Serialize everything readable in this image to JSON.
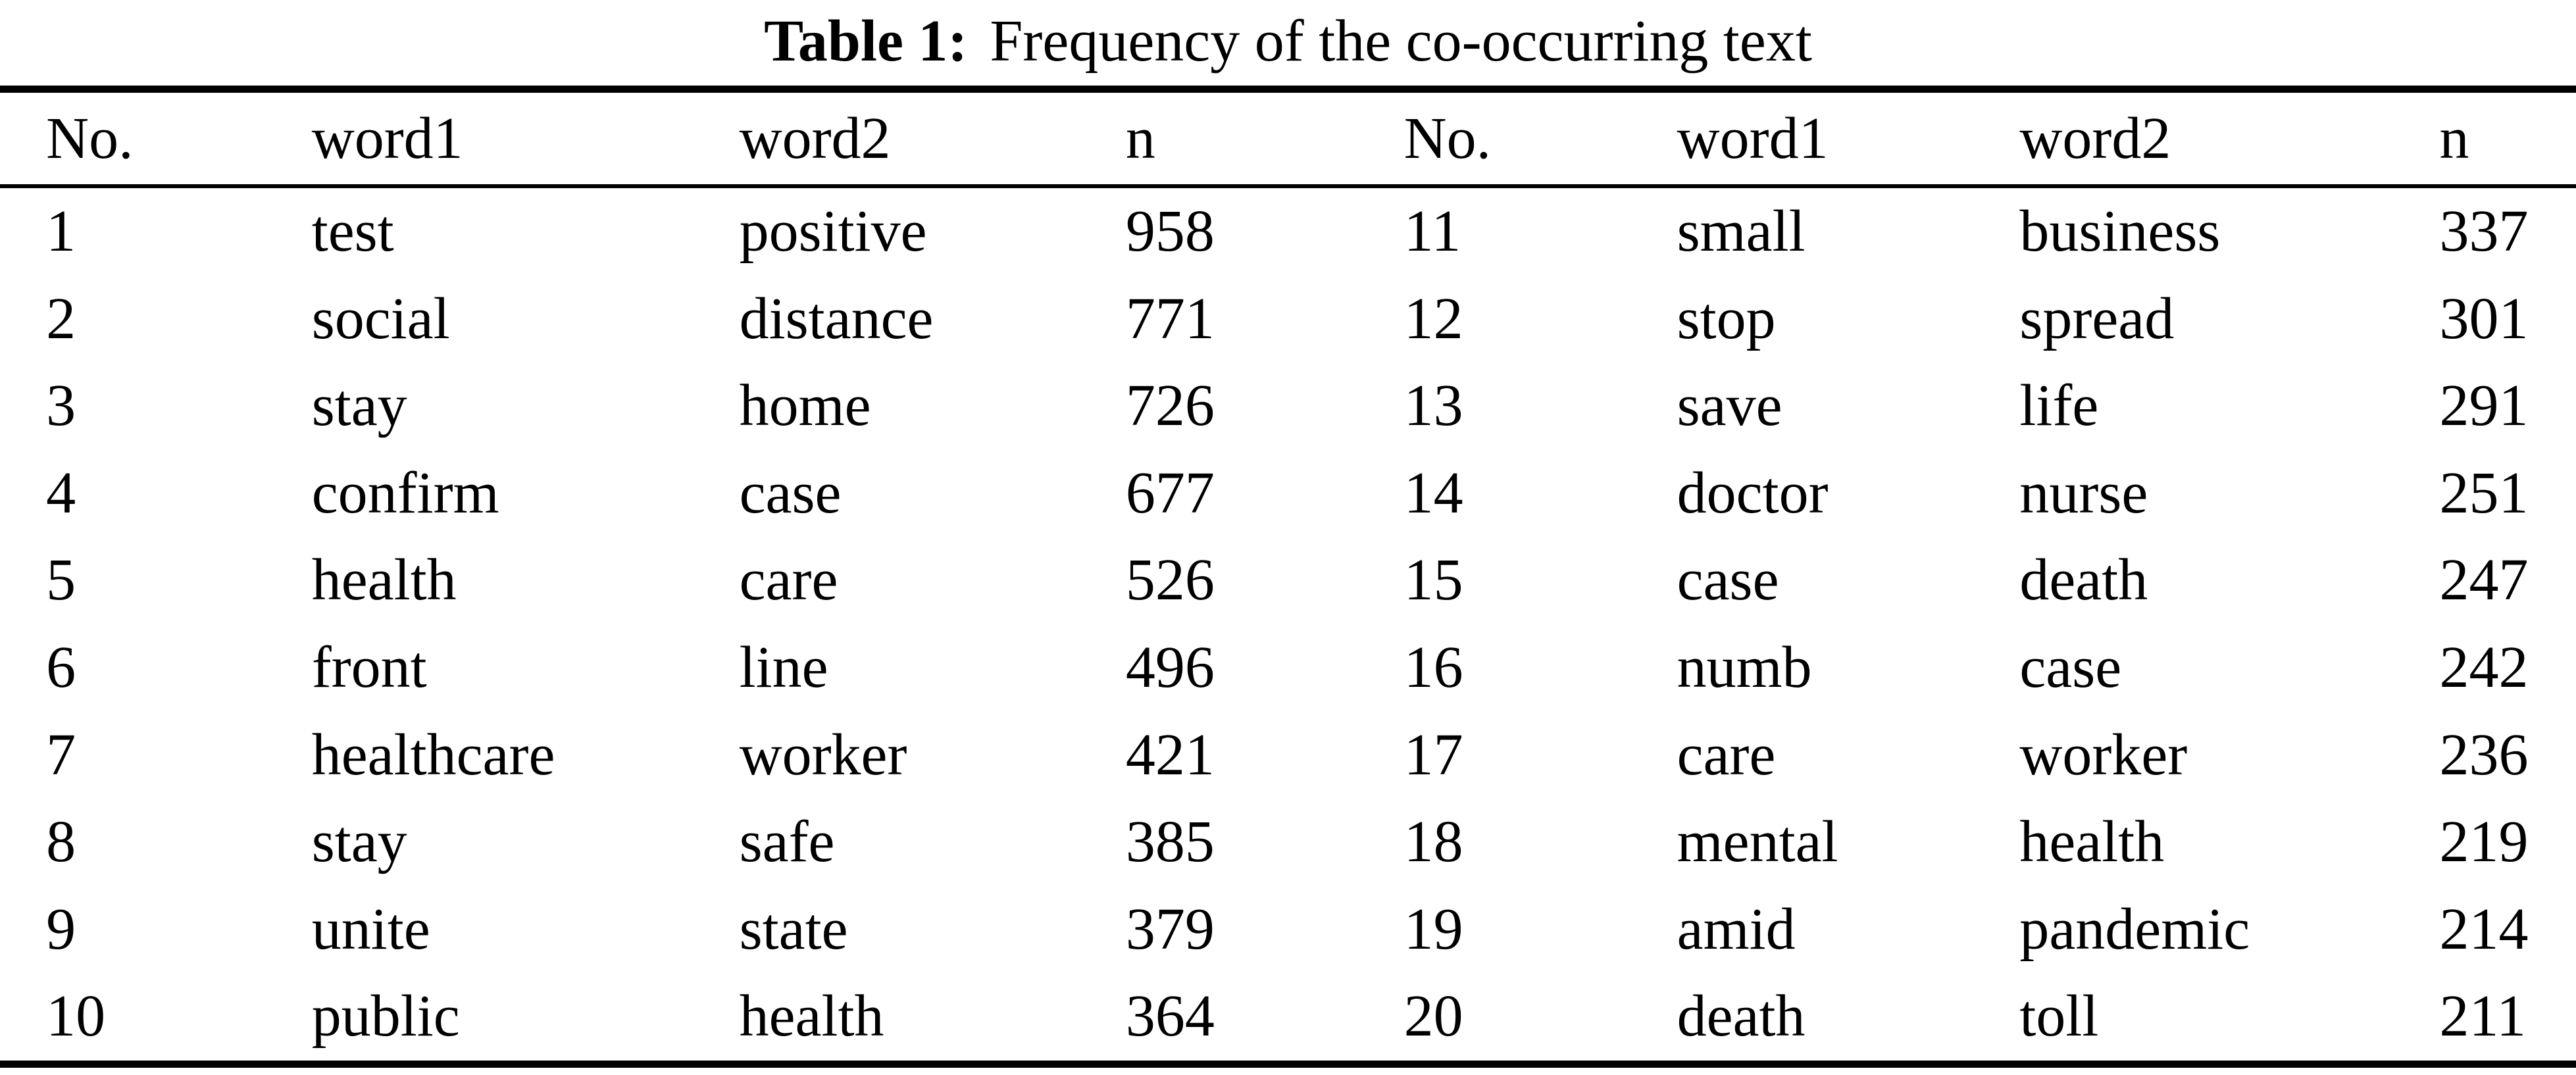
{
  "title": {
    "label": "Table 1:",
    "caption": "Frequency of the co-occurring text"
  },
  "columns": [
    "No.",
    "word1",
    "word2",
    "n"
  ],
  "rows_left": [
    {
      "no": "1",
      "word1": "test",
      "word2": "positive",
      "n": "958"
    },
    {
      "no": "2",
      "word1": "social",
      "word2": "distance",
      "n": "771"
    },
    {
      "no": "3",
      "word1": "stay",
      "word2": "home",
      "n": "726"
    },
    {
      "no": "4",
      "word1": "confirm",
      "word2": "case",
      "n": "677"
    },
    {
      "no": "5",
      "word1": "health",
      "word2": "care",
      "n": "526"
    },
    {
      "no": "6",
      "word1": "front",
      "word2": "line",
      "n": "496"
    },
    {
      "no": "7",
      "word1": "healthcare",
      "word2": "worker",
      "n": "421"
    },
    {
      "no": "8",
      "word1": "stay",
      "word2": "safe",
      "n": "385"
    },
    {
      "no": "9",
      "word1": "unite",
      "word2": "state",
      "n": "379"
    },
    {
      "no": "10",
      "word1": "public",
      "word2": "health",
      "n": "364"
    }
  ],
  "rows_right": [
    {
      "no": "11",
      "word1": "small",
      "word2": "business",
      "n": "337"
    },
    {
      "no": "12",
      "word1": "stop",
      "word2": "spread",
      "n": "301"
    },
    {
      "no": "13",
      "word1": "save",
      "word2": "life",
      "n": "291"
    },
    {
      "no": "14",
      "word1": "doctor",
      "word2": "nurse",
      "n": "251"
    },
    {
      "no": "15",
      "word1": "case",
      "word2": "death",
      "n": "247"
    },
    {
      "no": "16",
      "word1": "numb",
      "word2": "case",
      "n": "242"
    },
    {
      "no": "17",
      "word1": "care",
      "word2": "worker",
      "n": "236"
    },
    {
      "no": "18",
      "word1": "mental",
      "word2": "health",
      "n": "219"
    },
    {
      "no": "19",
      "word1": "amid",
      "word2": "pandemic",
      "n": "214"
    },
    {
      "no": "20",
      "word1": "death",
      "word2": "toll",
      "n": "211"
    }
  ],
  "colors": {
    "text": "#000000",
    "background": "#ffffff",
    "rule": "#000000"
  }
}
